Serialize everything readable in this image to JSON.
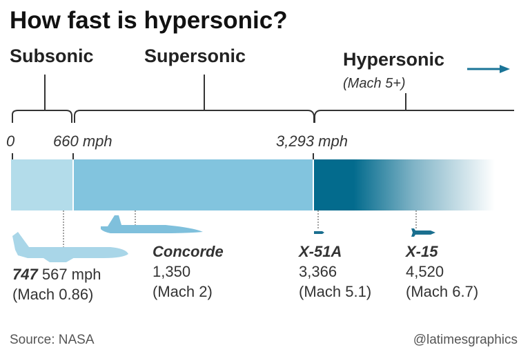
{
  "title": "How fast is hypersonic?",
  "categories": {
    "subsonic": "Subsonic",
    "supersonic": "Supersonic",
    "hypersonic": "Hypersonic",
    "hypersonic_note": "(Mach 5+)"
  },
  "scale_labels": [
    "0",
    "660 mph",
    "3,293 mph"
  ],
  "colors": {
    "subsonic": "#b3dcea",
    "supersonic": "#82c4de",
    "hypersonic": "#036b8d"
  },
  "aircraft": [
    {
      "name": "747",
      "speed": "567 mph",
      "mach": "(Mach 0.86)",
      "icon": "airliner-icon"
    },
    {
      "name": "Concorde",
      "speed": "1,350",
      "mach": "(Mach 2)",
      "icon": "concorde-icon"
    },
    {
      "name": "X-51A",
      "speed": "3,366",
      "mach": "(Mach 5.1)",
      "icon": "x51a-icon"
    },
    {
      "name": "X-15",
      "speed": "4,520",
      "mach": "(Mach 6.7)",
      "icon": "x15-icon"
    }
  ],
  "footer": {
    "source": "Source: NASA",
    "credit": "@latimesgraphics"
  }
}
